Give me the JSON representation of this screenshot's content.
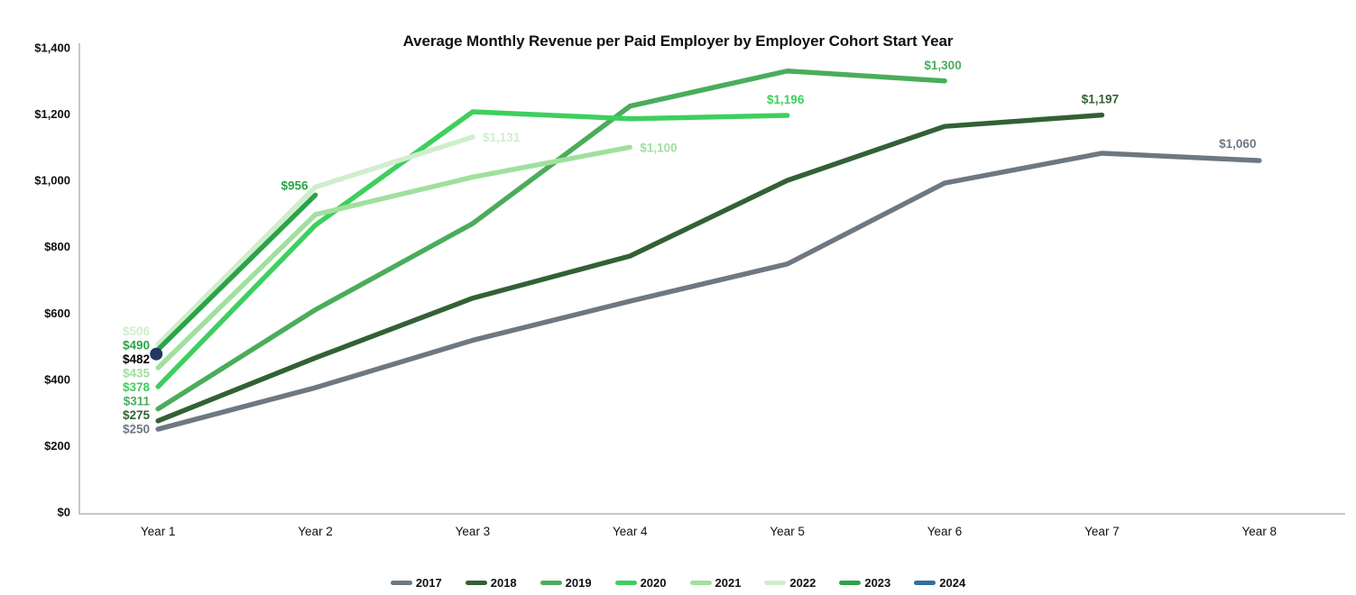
{
  "title": "Average Monthly Revenue per Paid Employer by Employer Cohort Start Year",
  "chart_data": {
    "type": "line",
    "title": "Average Monthly Revenue per Paid Employer by Employer Cohort Start Year",
    "x_label": "",
    "y_label": "",
    "x_categories": [
      "Year 1",
      "Year 2",
      "Year 3",
      "Year 4",
      "Year 5",
      "Year 6",
      "Year 7",
      "Year 8"
    ],
    "y_axis": {
      "min": 0,
      "max": 1400,
      "tick_values": [
        0,
        200,
        400,
        600,
        800,
        1000,
        1200,
        1400
      ],
      "tick_labels": [
        "$0",
        "$200",
        "$400",
        "$600",
        "$800",
        "$1,000",
        "$1,200",
        "$1,400"
      ]
    },
    "grid": "off",
    "legend_position": "bottom",
    "series": [
      {
        "name": "2017",
        "color": "#6d7882",
        "values": [
          250,
          375,
          518,
          636,
          748,
          992,
          1082,
          1060
        ],
        "start_label": "$250",
        "end_label": "$1,060",
        "end_label_pos": "above-left"
      },
      {
        "name": "2018",
        "color": "#326135",
        "values": [
          275,
          465,
          645,
          772,
          1000,
          1163,
          1197
        ],
        "start_label": "$275",
        "end_label": "$1,197",
        "end_label_pos": "above"
      },
      {
        "name": "2019",
        "color": "#4aad5b",
        "values": [
          311,
          610,
          870,
          1224,
          1330,
          1300
        ],
        "start_label": "$311",
        "end_label": "$1,300",
        "end_label_pos": "above"
      },
      {
        "name": "2020",
        "color": "#3ecf5e",
        "values": [
          378,
          865,
          1207,
          1186,
          1196
        ],
        "start_label": "$378",
        "end_label": "$1,196",
        "end_label_pos": "above"
      },
      {
        "name": "2021",
        "color": "#a0e09e",
        "values": [
          435,
          897,
          1010,
          1100
        ],
        "start_label": "$435",
        "end_label": "$1,100",
        "end_label_pos": "right"
      },
      {
        "name": "2022",
        "color": "#d0eecd",
        "values": [
          506,
          980,
          1131
        ],
        "start_label": "$506",
        "end_label": "$1,131",
        "end_label_pos": "right"
      },
      {
        "name": "2023",
        "color": "#2ca349",
        "values": [
          490,
          956
        ],
        "start_label": "$490",
        "end_label": "$956",
        "end_label_pos": "left-above"
      },
      {
        "name": "2024",
        "color": "#2f6f9f",
        "marker_color": "#1f3864",
        "values": [
          482
        ],
        "start_label": "$482",
        "start_label_color": "#000000",
        "end_label": null
      }
    ]
  }
}
